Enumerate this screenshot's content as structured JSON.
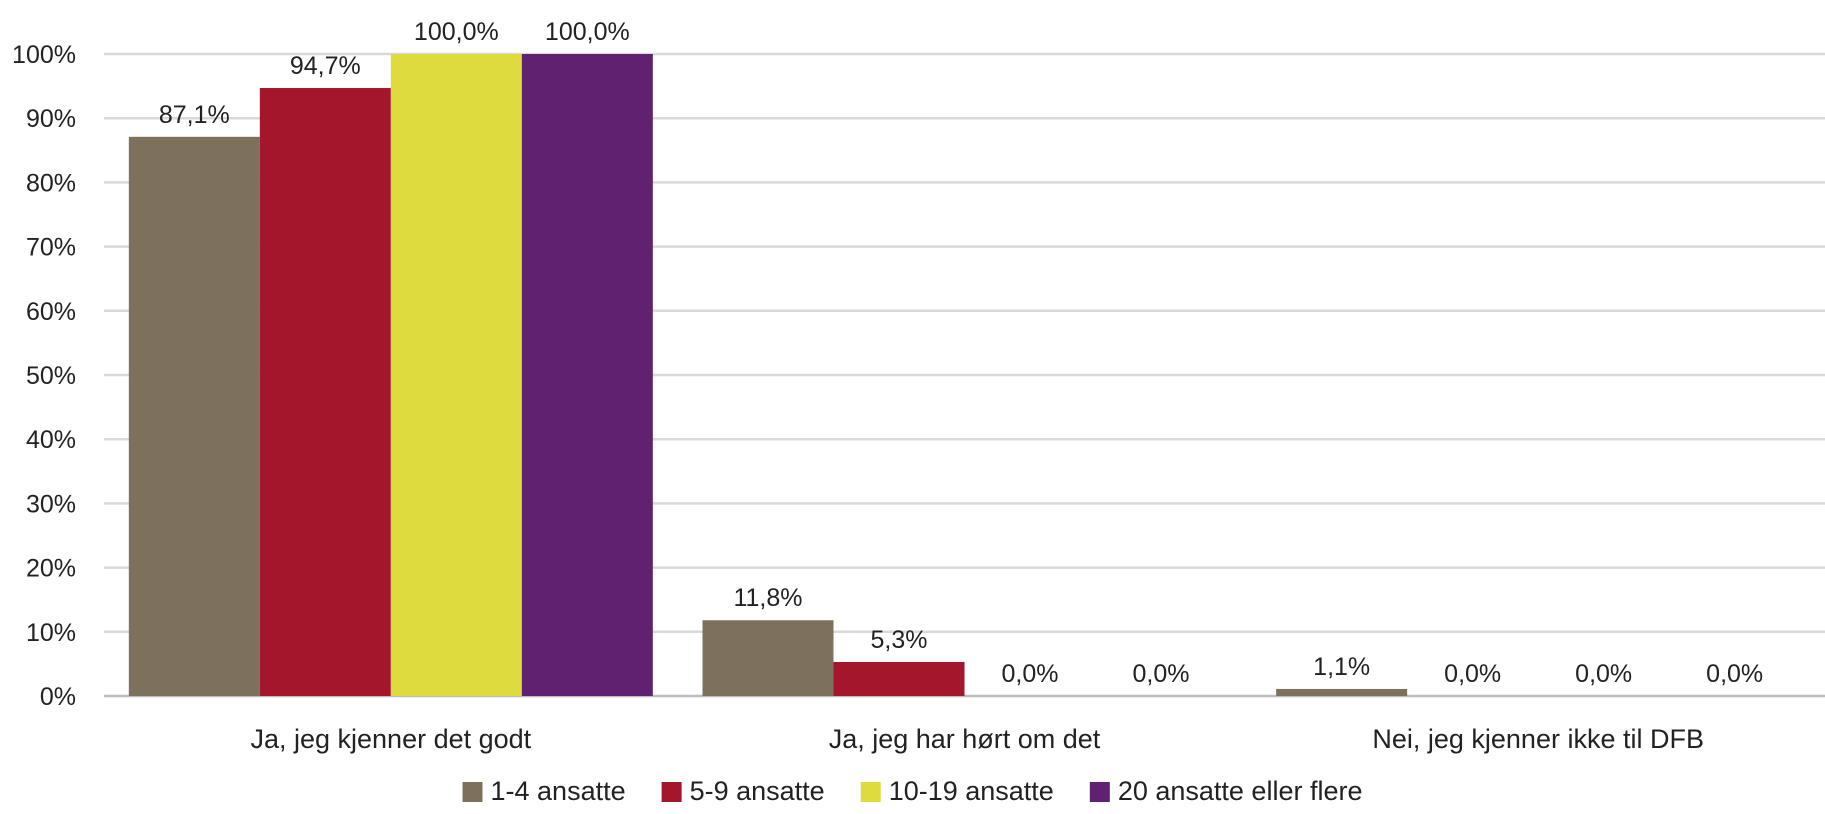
{
  "chart_data": {
    "type": "bar",
    "categories": [
      "Ja, jeg kjenner det godt",
      "Ja, jeg har hørt om det",
      "Nei, jeg kjenner ikke til DFB"
    ],
    "series": [
      {
        "name": "1-4 ansatte",
        "color": "#7d715d",
        "values": [
          87.1,
          11.8,
          1.1
        ],
        "labels": [
          "87,1%",
          "11,8%",
          "1,1%"
        ]
      },
      {
        "name": "5-9 ansatte",
        "color": "#a3162b",
        "values": [
          94.7,
          5.3,
          0.0
        ],
        "labels": [
          "94,7%",
          "5,3%",
          "0,0%"
        ]
      },
      {
        "name": "10-19 ansatte",
        "color": "#dedb3e",
        "values": [
          100.0,
          0.0,
          0.0
        ],
        "labels": [
          "100,0%",
          "0,0%",
          "0,0%"
        ]
      },
      {
        "name": "20 ansatte eller flere",
        "color": "#5f2170",
        "values": [
          100.0,
          0.0,
          0.0
        ],
        "labels": [
          "100,0%",
          "0,0%",
          "0,0%"
        ]
      }
    ],
    "ylim": [
      0,
      100
    ],
    "yticks": [
      "0%",
      "10%",
      "20%",
      "30%",
      "40%",
      "50%",
      "60%",
      "70%",
      "80%",
      "90%",
      "100%"
    ],
    "grid": true,
    "legend_position": "bottom"
  }
}
